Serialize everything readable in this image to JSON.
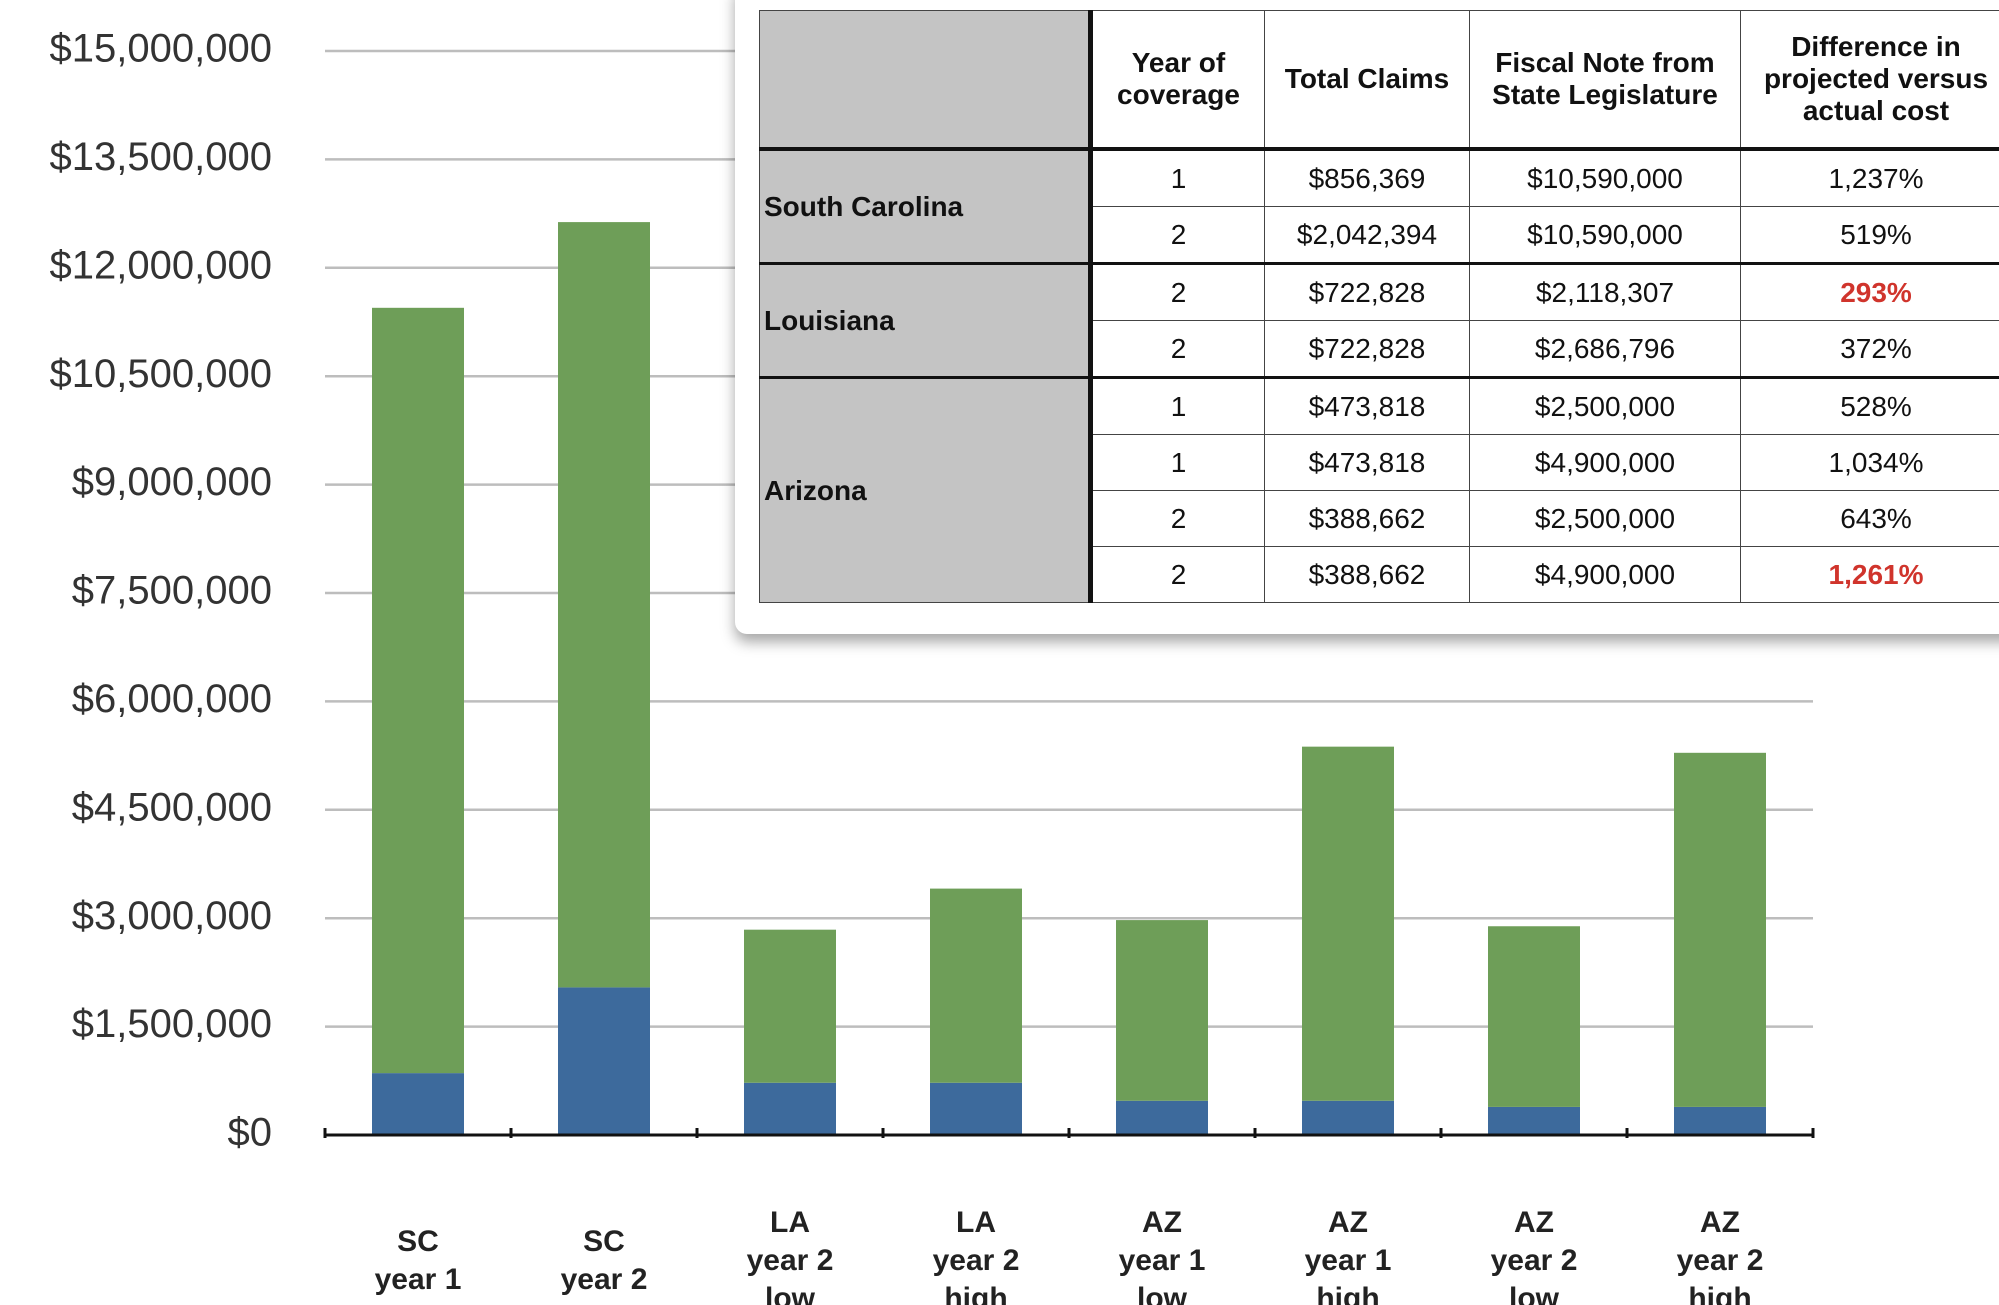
{
  "chart_data": {
    "type": "bar",
    "stacked": true,
    "categories": [
      [
        "SC",
        "year 1"
      ],
      [
        "SC",
        "year 2"
      ],
      [
        "LA",
        "year 2",
        "low"
      ],
      [
        "LA",
        "year 2",
        "high"
      ],
      [
        "AZ",
        "year 1",
        "low"
      ],
      [
        "AZ",
        "year 1",
        "high"
      ],
      [
        "AZ",
        "year 2",
        "low"
      ],
      [
        "AZ",
        "year 2",
        "high"
      ]
    ],
    "series": [
      {
        "color": "#3d6a9c",
        "values": [
          856369,
          2042394,
          722828,
          722828,
          473818,
          473818,
          388662,
          388662
        ]
      },
      {
        "color": "#6e9e58",
        "values": [
          10590000,
          10590000,
          2118307,
          2686796,
          2500000,
          4900000,
          2500000,
          4900000
        ]
      }
    ],
    "ylim": [
      0,
      15000000
    ],
    "yticks": [
      {
        "value": 0,
        "label": "$0"
      },
      {
        "value": 1500000,
        "label": "$1,500,000"
      },
      {
        "value": 3000000,
        "label": "$3,000,000"
      },
      {
        "value": 4500000,
        "label": "$4,500,000"
      },
      {
        "value": 6000000,
        "label": "$6,000,000"
      },
      {
        "value": 7500000,
        "label": "$7,500,000"
      },
      {
        "value": 9000000,
        "label": "$9,000,000"
      },
      {
        "value": 10500000,
        "label": "$10,500,000"
      },
      {
        "value": 12000000,
        "label": "$12,000,000"
      },
      {
        "value": 13500000,
        "label": "$13,500,000"
      },
      {
        "value": 15000000,
        "label": "$15,000,000"
      }
    ],
    "grid": true
  },
  "table": {
    "header": [
      "Year of coverage",
      "Total Claims",
      "Fiscal Note from State Legislature",
      "Difference in projected versus actual cost"
    ],
    "groups": [
      {
        "state": "South Carolina",
        "rows": [
          [
            "1",
            "$856,369",
            "$10,590,000",
            "1,237%"
          ],
          [
            "2",
            "$2,042,394",
            "$10,590,000",
            "519%"
          ]
        ]
      },
      {
        "state": "Louisiana",
        "rows": [
          [
            "2",
            "$722,828",
            "$2,118,307",
            "293%"
          ],
          [
            "2",
            "$722,828",
            "$2,686,796",
            "372%"
          ]
        ]
      },
      {
        "state": "Arizona",
        "rows": [
          [
            "1",
            "$473,818",
            "$2,500,000",
            "528%"
          ],
          [
            "1",
            "$473,818",
            "$4,900,000",
            "1,034%"
          ],
          [
            "2",
            "$388,662",
            "$2,500,000",
            "643%"
          ],
          [
            "2",
            "$388,662",
            "$4,900,000",
            "1,261%"
          ]
        ]
      }
    ]
  }
}
